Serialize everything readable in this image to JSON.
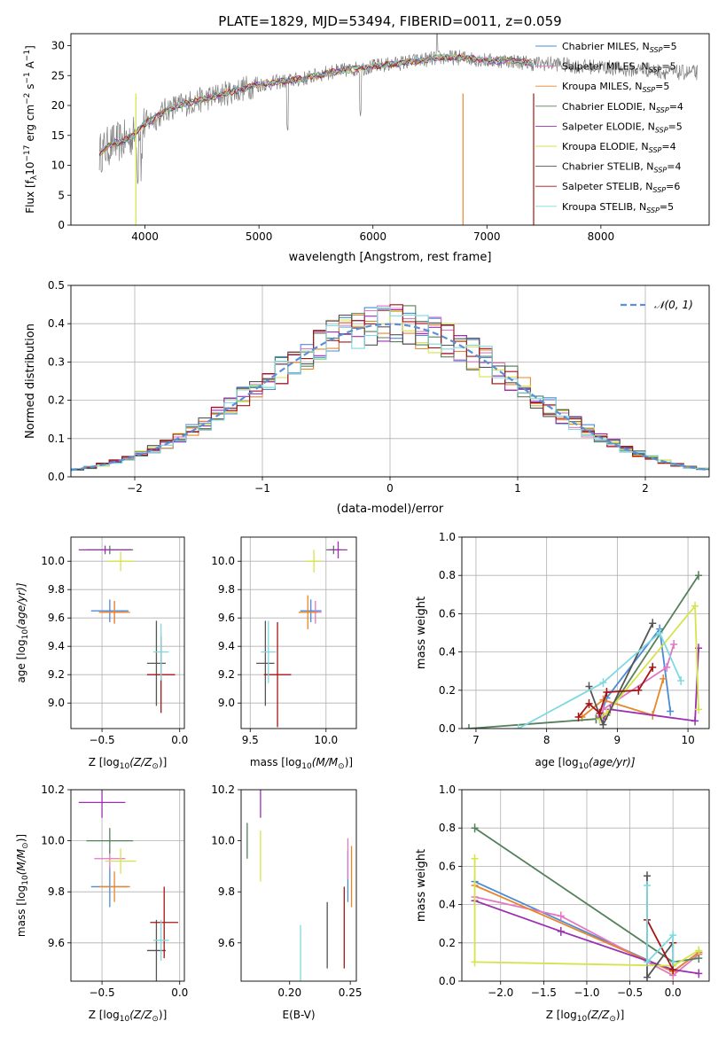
{
  "figure": {
    "title": "PLATE=1829, MJD=53494, FIBERID=0011, z=0.059"
  },
  "colors": {
    "Chabrier MILES": "#4c8bd6",
    "Salpeter MILES": "#e377c2",
    "Kroupa MILES": "#e8862b",
    "Chabrier ELODIE": "#55805a",
    "Salpeter ELODIE": "#9b30b0",
    "Kroupa ELODIE": "#d6e34a",
    "Chabrier STELIB": "#555555",
    "Salpeter STELIB": "#a51515",
    "Kroupa STELIB": "#7fd9e0",
    "data": "#7f7f7f",
    "gaussian": "#5b8fd6"
  },
  "chart_data": [
    {
      "id": "spectrum",
      "type": "line",
      "xlabel": "wavelength [Angstrom, rest frame]",
      "ylabel": "Flux [f",
      "ylabel_parts": [
        "Flux [f",
        "λ",
        "10",
        "−17",
        " erg cm",
        "−2",
        " s",
        "−1",
        " A",
        "−1",
        "]"
      ],
      "xlim": [
        3350,
        8950
      ],
      "ylim": [
        0,
        32
      ],
      "xticks": [
        4000,
        5000,
        6000,
        7000,
        8000
      ],
      "yticks": [
        0,
        5,
        10,
        15,
        20,
        25,
        30
      ],
      "grid": false,
      "legend_position": "right",
      "continuum": {
        "x": [
          3600,
          3700,
          3800,
          3900,
          4000,
          4100,
          4200,
          4400,
          4600,
          4800,
          5000,
          5200,
          5400,
          5600,
          5800,
          6000,
          6200,
          6400,
          6600,
          6800,
          7000,
          7200,
          7400,
          7600,
          7800,
          8000,
          8200,
          8400,
          8600,
          8800
        ],
        "y": [
          12,
          13.5,
          14,
          15,
          17,
          18,
          19.5,
          20.5,
          21.5,
          22.5,
          23.5,
          24,
          24.5,
          25.5,
          26,
          26.5,
          27,
          27.5,
          28,
          28,
          27.5,
          27.5,
          27,
          27,
          26.5,
          26.5,
          26,
          26,
          25.5,
          25.5
        ]
      },
      "legend": [
        {
          "name": "Chabrier MILES",
          "nssp": "5"
        },
        {
          "name": "Salpeter MILES",
          "nssp": "5"
        },
        {
          "name": "Kroupa MILES",
          "nssp": "5"
        },
        {
          "name": "Chabrier ELODIE",
          "nssp": "4"
        },
        {
          "name": "Salpeter ELODIE",
          "nssp": "5"
        },
        {
          "name": "Kroupa ELODIE",
          "nssp": "4"
        },
        {
          "name": "Chabrier STELIB",
          "nssp": "4"
        },
        {
          "name": "Salpeter STELIB",
          "nssp": "6"
        },
        {
          "name": "Kroupa STELIB",
          "nssp": "5"
        }
      ],
      "legend_suffix": ", N",
      "legend_sub": "SSP"
    },
    {
      "id": "residuals",
      "type": "line",
      "xlabel": "(data-model)/error",
      "ylabel": "Normed distribution",
      "xlim": [
        -2.5,
        2.5
      ],
      "ylim": [
        0,
        0.5
      ],
      "xticks": [
        -2,
        -1,
        0,
        1,
        2
      ],
      "xtick_labels": [
        "−2",
        "−1",
        "0",
        "1",
        "2"
      ],
      "yticks": [
        0,
        0.1,
        0.2,
        0.3,
        0.4,
        0.5
      ],
      "ytick_labels": [
        "0.0",
        "0.1",
        "0.2",
        "0.3",
        "0.4",
        "0.5"
      ],
      "grid": true,
      "legend_position": "top-right",
      "legend_label": "𝒩(0, 1)",
      "bin_width": 0.1
    },
    {
      "id": "age_vs_Z",
      "type": "scatter",
      "xlabel": "Z [log",
      "xlabel_parts": [
        "Z [log",
        "10",
        "(Z/Z",
        "⊙",
        ")]"
      ],
      "ylabel_parts": [
        "age  [log",
        "10",
        "(age/yr)]"
      ],
      "xlim": [
        -0.7,
        0.03
      ],
      "ylim": [
        8.82,
        10.17
      ],
      "xticks": [
        -0.5,
        0.0
      ],
      "xtick_labels": [
        "−0.5",
        "0.0"
      ],
      "yticks": [
        9.0,
        9.2,
        9.4,
        9.6,
        9.8,
        10.0
      ],
      "ytick_labels": [
        "9.0",
        "9.2",
        "9.4",
        "9.6",
        "9.8",
        "10.0"
      ],
      "grid": true,
      "points": [
        {
          "model": "Chabrier MILES",
          "x": -0.45,
          "y": 9.65,
          "xerr": 0.12,
          "yerr": 0.08
        },
        {
          "model": "Salpeter MILES",
          "x": -0.42,
          "y": 9.64,
          "xerr": 0.07,
          "yerr": 0.08
        },
        {
          "model": "Kroupa MILES",
          "x": -0.42,
          "y": 9.64,
          "xerr": 0.1,
          "yerr": 0.08
        },
        {
          "model": "Chabrier ELODIE",
          "x": -0.45,
          "y": 10.08,
          "xerr": 0.15,
          "yerr": 0.03
        },
        {
          "model": "Salpeter ELODIE",
          "x": -0.48,
          "y": 10.08,
          "xerr": 0.17,
          "yerr": 0.03
        },
        {
          "model": "Kroupa ELODIE",
          "x": -0.38,
          "y": 10.0,
          "xerr": 0.08,
          "yerr": 0.07
        },
        {
          "model": "Chabrier STELIB",
          "x": -0.15,
          "y": 9.28,
          "xerr": 0.06,
          "yerr": 0.3
        },
        {
          "model": "Salpeter STELIB",
          "x": -0.12,
          "y": 9.2,
          "xerr": 0.09,
          "yerr": 0.27
        },
        {
          "model": "Kroupa STELIB",
          "x": -0.12,
          "y": 9.36,
          "xerr": 0.05,
          "yerr": 0.2
        }
      ]
    },
    {
      "id": "age_vs_mass",
      "type": "scatter",
      "xlabel_parts": [
        "mass [log",
        "10",
        "(M/M",
        "⊙",
        ")]"
      ],
      "xlim": [
        9.44,
        10.2
      ],
      "ylim": [
        8.82,
        10.17
      ],
      "xticks": [
        9.5,
        10.0
      ],
      "xtick_labels": [
        "9.5",
        "10.0"
      ],
      "yticks": [
        9.0,
        9.2,
        9.4,
        9.6,
        9.8,
        10.0
      ],
      "ytick_labels": [
        "9.0",
        "9.2",
        "9.4",
        "9.6",
        "9.8",
        "10.0"
      ],
      "grid": true,
      "points": [
        {
          "model": "Chabrier MILES",
          "x": 9.9,
          "y": 9.65,
          "xerr": 0.07,
          "yerr": 0.08
        },
        {
          "model": "Salpeter MILES",
          "x": 9.93,
          "y": 9.64,
          "xerr": 0.04,
          "yerr": 0.08
        },
        {
          "model": "Kroupa MILES",
          "x": 9.88,
          "y": 9.64,
          "xerr": 0.06,
          "yerr": 0.12
        },
        {
          "model": "Chabrier ELODIE",
          "x": 10.05,
          "y": 10.08,
          "xerr": 0.05,
          "yerr": 0.03
        },
        {
          "model": "Salpeter ELODIE",
          "x": 10.08,
          "y": 10.08,
          "xerr": 0.06,
          "yerr": 0.06
        },
        {
          "model": "Kroupa ELODIE",
          "x": 9.92,
          "y": 10.0,
          "xerr": 0.05,
          "yerr": 0.08
        },
        {
          "model": "Chabrier STELIB",
          "x": 9.6,
          "y": 9.28,
          "xerr": 0.06,
          "yerr": 0.3
        },
        {
          "model": "Salpeter STELIB",
          "x": 9.68,
          "y": 9.2,
          "xerr": 0.09,
          "yerr": 0.37
        },
        {
          "model": "Kroupa STELIB",
          "x": 9.62,
          "y": 9.36,
          "xerr": 0.05,
          "yerr": 0.22
        }
      ]
    },
    {
      "id": "weight_vs_age",
      "type": "line",
      "xlabel_parts": [
        "age  [log",
        "10",
        "(age/yr)]"
      ],
      "ylabel": "mass weight",
      "xlim": [
        6.8,
        10.3
      ],
      "ylim": [
        0,
        1
      ],
      "xticks": [
        7,
        8,
        9,
        10
      ],
      "yticks": [
        0,
        0.2,
        0.4,
        0.6,
        0.8,
        1.0
      ],
      "ytick_labels": [
        "0.0",
        "0.2",
        "0.4",
        "0.6",
        "0.8",
        "1.0"
      ],
      "grid": true,
      "series": [
        {
          "model": "Chabrier MILES",
          "x": [
            8.75,
            8.85,
            9.6,
            9.75
          ],
          "y": [
            0.05,
            0.16,
            0.52,
            0.09
          ]
        },
        {
          "model": "Salpeter MILES",
          "x": [
            8.7,
            8.8,
            9.7,
            9.8
          ],
          "y": [
            0.05,
            0.1,
            0.32,
            0.44
          ]
        },
        {
          "model": "Kroupa MILES",
          "x": [
            8.5,
            8.8,
            9.5,
            9.65
          ],
          "y": [
            0.06,
            0.15,
            0.07,
            0.26
          ]
        },
        {
          "model": "Chabrier ELODIE",
          "x": [
            6.9,
            8.7,
            8.85,
            10.15
          ],
          "y": [
            0.0,
            0.05,
            0.07,
            0.8
          ]
        },
        {
          "model": "Salpeter ELODIE",
          "x": [
            8.8,
            8.9,
            10.1,
            10.15
          ],
          "y": [
            0.05,
            0.1,
            0.04,
            0.42
          ]
        },
        {
          "model": "Kroupa ELODIE",
          "x": [
            8.75,
            8.85,
            10.1,
            10.15
          ],
          "y": [
            0.05,
            0.08,
            0.64,
            0.1
          ]
        },
        {
          "model": "Chabrier STELIB",
          "x": [
            8.6,
            8.8,
            9.5
          ],
          "y": [
            0.22,
            0.02,
            0.55
          ]
        },
        {
          "model": "Salpeter STELIB",
          "x": [
            8.45,
            8.6,
            8.75,
            8.85,
            9.3,
            9.5
          ],
          "y": [
            0.06,
            0.13,
            0.08,
            0.19,
            0.2,
            0.32
          ]
        },
        {
          "model": "Kroupa STELIB",
          "x": [
            7.6,
            8.8,
            9.6,
            9.9
          ],
          "y": [
            0.0,
            0.24,
            0.5,
            0.25
          ]
        }
      ]
    },
    {
      "id": "mass_vs_Z",
      "type": "scatter",
      "xlabel_parts": [
        "Z [log",
        "10",
        "(Z/Z",
        "⊙",
        ")]"
      ],
      "ylabel_parts": [
        "mass [log",
        "10",
        "(M/M",
        "⊙",
        ")]"
      ],
      "xlim": [
        -0.7,
        0.03
      ],
      "ylim": [
        9.45,
        10.2
      ],
      "xticks": [
        -0.5,
        0.0
      ],
      "xtick_labels": [
        "−0.5",
        "0.0"
      ],
      "yticks": [
        9.6,
        9.8,
        10.0,
        10.2
      ],
      "ytick_labels": [
        "9.6",
        "9.8",
        "10.0",
        "10.2"
      ],
      "grid": true,
      "points": [
        {
          "model": "Chabrier MILES",
          "x": -0.45,
          "y": 9.82,
          "xerr": 0.12,
          "yerr": 0.08
        },
        {
          "model": "Salpeter MILES",
          "x": -0.45,
          "y": 9.93,
          "xerr": 0.1,
          "yerr": 0.04
        },
        {
          "model": "Kroupa MILES",
          "x": -0.42,
          "y": 9.82,
          "xerr": 0.1,
          "yerr": 0.06
        },
        {
          "model": "Chabrier ELODIE",
          "x": -0.45,
          "y": 10.0,
          "xerr": 0.15,
          "yerr": 0.05
        },
        {
          "model": "Salpeter ELODIE",
          "x": -0.5,
          "y": 10.15,
          "xerr": 0.15,
          "yerr": 0.06
        },
        {
          "model": "Kroupa ELODIE",
          "x": -0.38,
          "y": 9.92,
          "xerr": 0.1,
          "yerr": 0.05
        },
        {
          "model": "Chabrier STELIB",
          "x": -0.15,
          "y": 9.57,
          "xerr": 0.06,
          "yerr": 0.12
        },
        {
          "model": "Salpeter STELIB",
          "x": -0.1,
          "y": 9.68,
          "xerr": 0.09,
          "yerr": 0.14
        },
        {
          "model": "Kroupa STELIB",
          "x": -0.12,
          "y": 9.61,
          "xerr": 0.05,
          "yerr": 0.08
        }
      ]
    },
    {
      "id": "mass_vs_EBV",
      "type": "scatter",
      "xlabel": "E(B-V)",
      "xlim": [
        0.16,
        0.255
      ],
      "ylim": [
        9.45,
        10.2
      ],
      "xticks": [
        0.2,
        0.25
      ],
      "xtick_labels": [
        "0.20",
        "0.25"
      ],
      "yticks": [
        9.6,
        9.8,
        10.0,
        10.2
      ],
      "ytick_labels": [
        "9.6",
        "9.8",
        "10.0",
        "10.2"
      ],
      "grid": false,
      "points": [
        {
          "model": "Chabrier MILES",
          "x": 0.248,
          "y": 9.86,
          "xerr": 0,
          "yerr": 0.1
        },
        {
          "model": "Salpeter MILES",
          "x": 0.248,
          "y": 9.93,
          "xerr": 0,
          "yerr": 0.08
        },
        {
          "model": "Kroupa MILES",
          "x": 0.251,
          "y": 9.86,
          "xerr": 0,
          "yerr": 0.12
        },
        {
          "model": "Chabrier ELODIE",
          "x": 0.165,
          "y": 10.0,
          "xerr": 0,
          "yerr": 0.07
        },
        {
          "model": "Salpeter ELODIE",
          "x": 0.176,
          "y": 10.15,
          "xerr": 0,
          "yerr": 0.06
        },
        {
          "model": "Kroupa ELODIE",
          "x": 0.176,
          "y": 9.94,
          "xerr": 0,
          "yerr": 0.1
        },
        {
          "model": "Chabrier STELIB",
          "x": 0.231,
          "y": 9.63,
          "xerr": 0,
          "yerr": 0.13
        },
        {
          "model": "Salpeter STELIB",
          "x": 0.245,
          "y": 9.66,
          "xerr": 0,
          "yerr": 0.16
        },
        {
          "model": "Kroupa STELIB",
          "x": 0.209,
          "y": 9.56,
          "xerr": 0,
          "yerr": 0.11
        }
      ]
    },
    {
      "id": "weight_vs_Z",
      "type": "line",
      "xlabel_parts": [
        "Z [log",
        "10",
        "(Z/Z",
        "⊙",
        ")]"
      ],
      "ylabel": "mass weight",
      "xlim": [
        -2.45,
        0.42
      ],
      "ylim": [
        0,
        1
      ],
      "xticks": [
        -2.0,
        -1.5,
        -1.0,
        -0.5,
        0.0
      ],
      "xtick_labels": [
        "−2.0",
        "−1.5",
        "−1.0",
        "−0.5",
        "0.0"
      ],
      "yticks": [
        0,
        0.2,
        0.4,
        0.6,
        0.8,
        1.0
      ],
      "ytick_labels": [
        "0.0",
        "0.2",
        "0.4",
        "0.6",
        "0.8",
        "1.0"
      ],
      "grid": true,
      "series": [
        {
          "model": "Chabrier MILES",
          "x": [
            -2.3,
            0.0,
            0.3
          ],
          "y": [
            0.52,
            0.05,
            0.15
          ]
        },
        {
          "model": "Salpeter MILES",
          "x": [
            -2.3,
            -1.3,
            0.0,
            0.3
          ],
          "y": [
            0.44,
            0.34,
            0.03,
            0.14
          ]
        },
        {
          "model": "Kroupa MILES",
          "x": [
            -2.3,
            0.0,
            0.3
          ],
          "y": [
            0.5,
            0.05,
            0.15
          ]
        },
        {
          "model": "Chabrier ELODIE",
          "x": [
            -2.3,
            0.0,
            0.3
          ],
          "y": [
            0.8,
            0.1,
            0.12
          ]
        },
        {
          "model": "Salpeter ELODIE",
          "x": [
            -2.3,
            -1.3,
            0.0,
            0.3
          ],
          "y": [
            0.42,
            0.26,
            0.06,
            0.04
          ]
        },
        {
          "model": "Kroupa ELODIE",
          "x": [
            -2.3,
            -2.3,
            0.0,
            0.3
          ],
          "y": [
            0.64,
            0.1,
            0.08,
            0.16
          ]
        },
        {
          "model": "Chabrier STELIB",
          "x": [
            -0.3,
            -0.3,
            0.0
          ],
          "y": [
            0.55,
            0.02,
            0.2
          ]
        },
        {
          "model": "Salpeter STELIB",
          "x": [
            -0.3,
            0.0,
            0.0
          ],
          "y": [
            0.32,
            0.06,
            0.2
          ]
        },
        {
          "model": "Kroupa STELIB",
          "x": [
            -0.3,
            -0.3,
            0.0,
            0.0
          ],
          "y": [
            0.5,
            0.1,
            0.24,
            0.1
          ]
        }
      ]
    }
  ]
}
